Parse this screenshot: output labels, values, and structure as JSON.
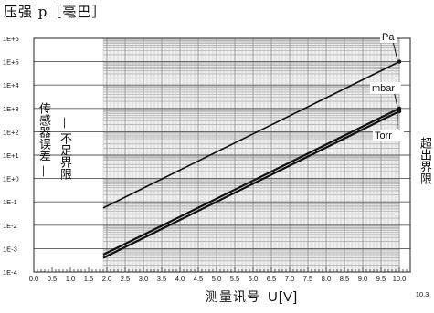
{
  "chart_data": {
    "type": "line",
    "ytitle": "压强 p［毫巴］",
    "xtitle": "测量讯号",
    "xunit": "U[V]",
    "x_max_label": "10.3",
    "xlim": [
      0,
      10.3
    ],
    "ylim_exponents": [
      -4,
      6
    ],
    "yscale": "log",
    "x_ticks": [
      "0.0",
      "0.5",
      "1.0",
      "1.5",
      "2.0",
      "2.5",
      "3.0",
      "3.5",
      "4.0",
      "4.5",
      "5.0",
      "5.5",
      "6.0",
      "6.5",
      "7.0",
      "7.5",
      "8.0",
      "8.5",
      "9.0",
      "9.5",
      "10.0"
    ],
    "y_ticks": [
      "1E-4",
      "1E-3",
      "1E-2",
      "1E-1",
      "1E+0",
      "1E+1",
      "1E+2",
      "1E+3",
      "1E+4",
      "1E+5",
      "1E+6"
    ],
    "grid": true,
    "series": [
      {
        "name": "Pa",
        "x": [
          1.9,
          10.0
        ],
        "y": [
          0.055,
          100000
        ]
      },
      {
        "name": "mbar",
        "x": [
          1.9,
          10.0
        ],
        "y": [
          0.00055,
          1000
        ]
      },
      {
        "name": "Torr",
        "x": [
          1.9,
          10.0
        ],
        "y": [
          0.0004,
          750
        ]
      }
    ],
    "left_annotation_1": "传感器误差",
    "left_annotation_2": "不足界限",
    "right_annotation": "超出界限",
    "dash": "—"
  }
}
